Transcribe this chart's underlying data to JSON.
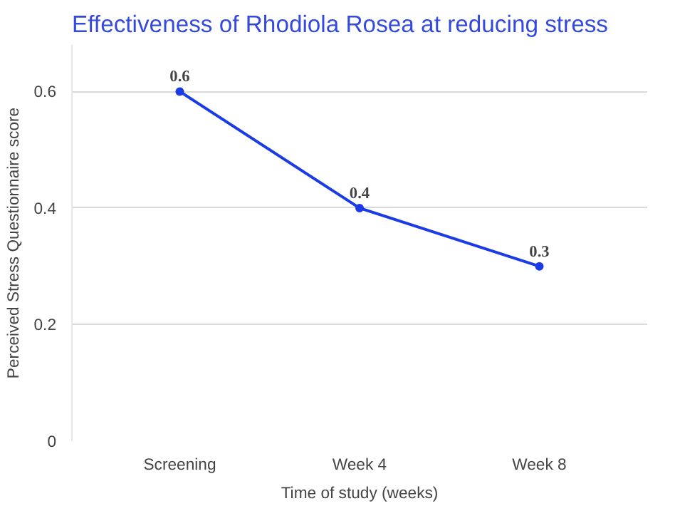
{
  "chart_data": {
    "type": "line",
    "title": "Effectiveness of Rhodiola Rosea at reducing stress",
    "xlabel": "Time of study (weeks)",
    "ylabel": "Perceived Stress Questionnaire score",
    "categories": [
      "Screening",
      "Week 4",
      "Week 8"
    ],
    "series": [
      {
        "color": "#1a3be6",
        "values": [
          0.6,
          0.4,
          0.3
        ]
      }
    ],
    "ylim": [
      0,
      0.68
    ],
    "yticks": [
      0,
      0.2,
      0.4,
      0.6
    ],
    "grid": "y",
    "data_labels": true,
    "marker": "circle",
    "line_style": "solid"
  }
}
